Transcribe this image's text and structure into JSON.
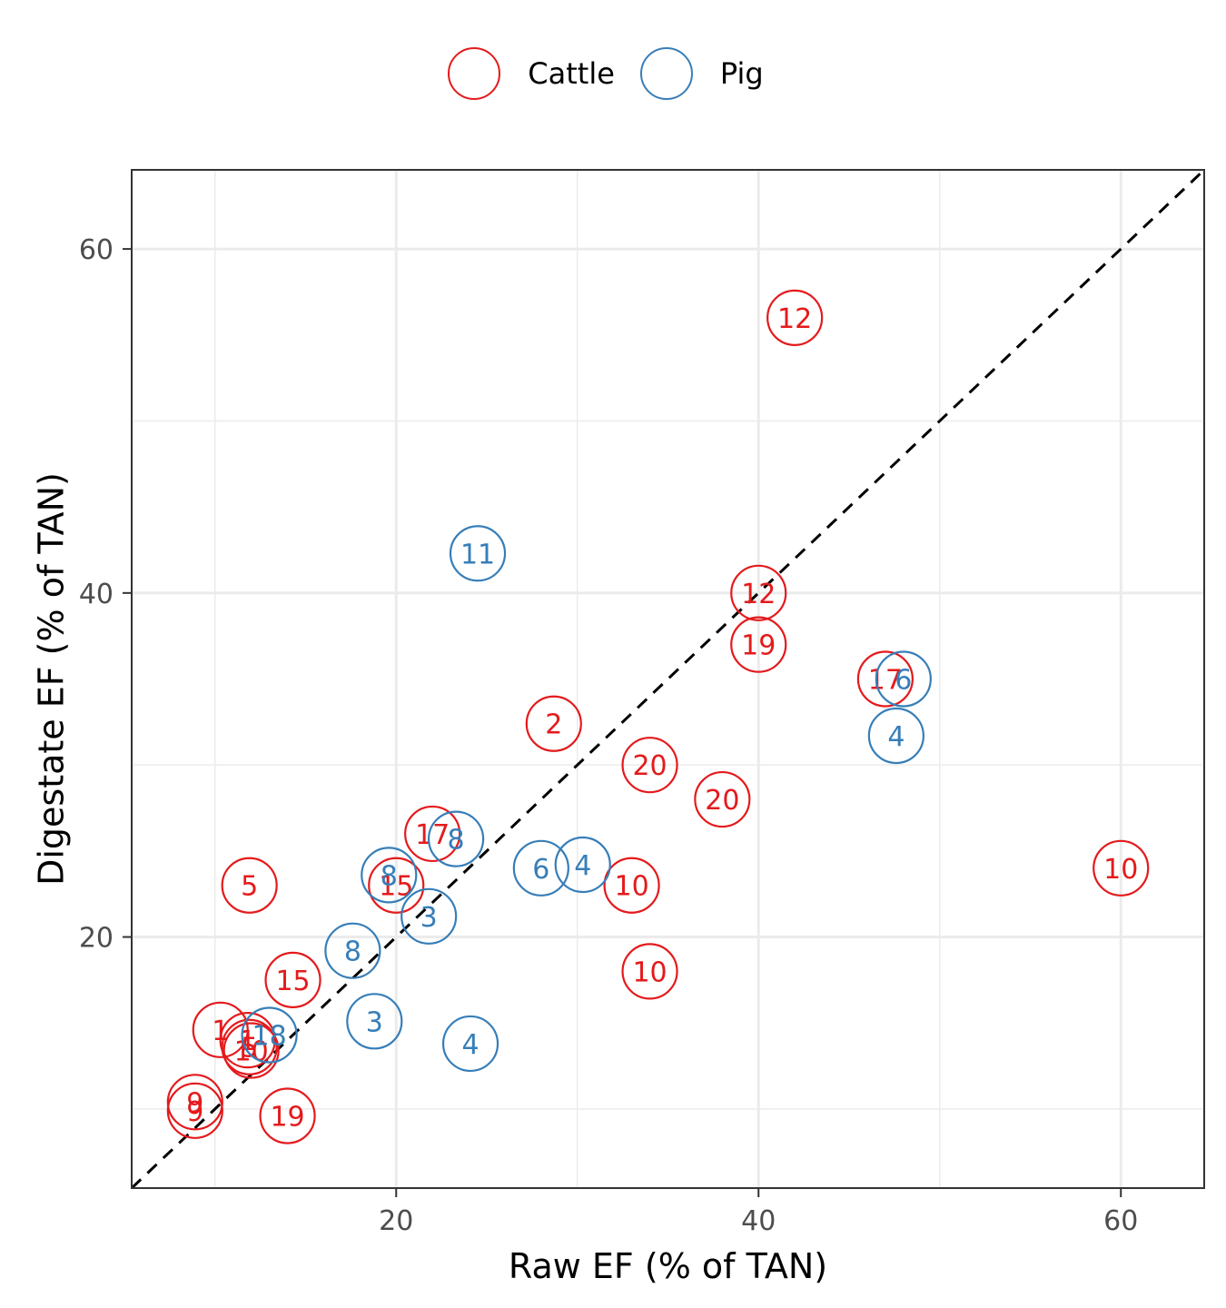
{
  "chart_data": {
    "type": "scatter",
    "xlabel": "Raw EF (% of TAN)",
    "ylabel": "Digestate EF (% of TAN)",
    "xlim": [
      5.4,
      64.6
    ],
    "ylim": [
      5.4,
      64.6
    ],
    "xticks": [
      20,
      40,
      60
    ],
    "yticks": [
      20,
      40,
      60
    ],
    "grid": true,
    "reference_line": "y = x (dashed)",
    "legend_position": "top",
    "series": [
      {
        "name": "Cattle",
        "color": "#e41a1c",
        "points": [
          {
            "x": 42.0,
            "y": 56.0,
            "label": "12"
          },
          {
            "x": 40.0,
            "y": 40.0,
            "label": "12"
          },
          {
            "x": 40.0,
            "y": 37.0,
            "label": "19"
          },
          {
            "x": 47.0,
            "y": 35.0,
            "label": "17"
          },
          {
            "x": 28.7,
            "y": 32.4,
            "label": "2"
          },
          {
            "x": 34.0,
            "y": 30.0,
            "label": "20"
          },
          {
            "x": 38.0,
            "y": 28.0,
            "label": "20"
          },
          {
            "x": 22.0,
            "y": 26.0,
            "label": "17"
          },
          {
            "x": 60.0,
            "y": 24.0,
            "label": "10"
          },
          {
            "x": 11.9,
            "y": 23.0,
            "label": "5"
          },
          {
            "x": 20.0,
            "y": 23.0,
            "label": "15"
          },
          {
            "x": 33.0,
            "y": 23.0,
            "label": "10"
          },
          {
            "x": 34.0,
            "y": 18.0,
            "label": "10"
          },
          {
            "x": 14.3,
            "y": 17.5,
            "label": "15"
          },
          {
            "x": 10.3,
            "y": 14.6,
            "label": "1"
          },
          {
            "x": 11.8,
            "y": 14.0,
            "label": "1"
          },
          {
            "x": 11.9,
            "y": 13.6,
            "label": "5"
          },
          {
            "x": 12.0,
            "y": 13.4,
            "label": "10"
          },
          {
            "x": 8.9,
            "y": 10.4,
            "label": "9"
          },
          {
            "x": 8.9,
            "y": 9.9,
            "label": "9"
          },
          {
            "x": 14.0,
            "y": 9.6,
            "label": "19"
          }
        ]
      },
      {
        "name": "Pig",
        "color": "#377eb8",
        "points": [
          {
            "x": 24.5,
            "y": 42.3,
            "label": "11"
          },
          {
            "x": 48.0,
            "y": 35.0,
            "label": "6"
          },
          {
            "x": 47.6,
            "y": 31.7,
            "label": "4"
          },
          {
            "x": 23.3,
            "y": 25.7,
            "label": "8"
          },
          {
            "x": 28.0,
            "y": 24.0,
            "label": "6"
          },
          {
            "x": 30.3,
            "y": 24.2,
            "label": "4"
          },
          {
            "x": 19.6,
            "y": 23.6,
            "label": "8"
          },
          {
            "x": 21.8,
            "y": 21.2,
            "label": "3"
          },
          {
            "x": 17.6,
            "y": 19.2,
            "label": "8"
          },
          {
            "x": 18.8,
            "y": 15.1,
            "label": "3"
          },
          {
            "x": 24.1,
            "y": 13.8,
            "label": "4"
          },
          {
            "x": 13.0,
            "y": 14.3,
            "label": "18"
          }
        ]
      }
    ]
  }
}
